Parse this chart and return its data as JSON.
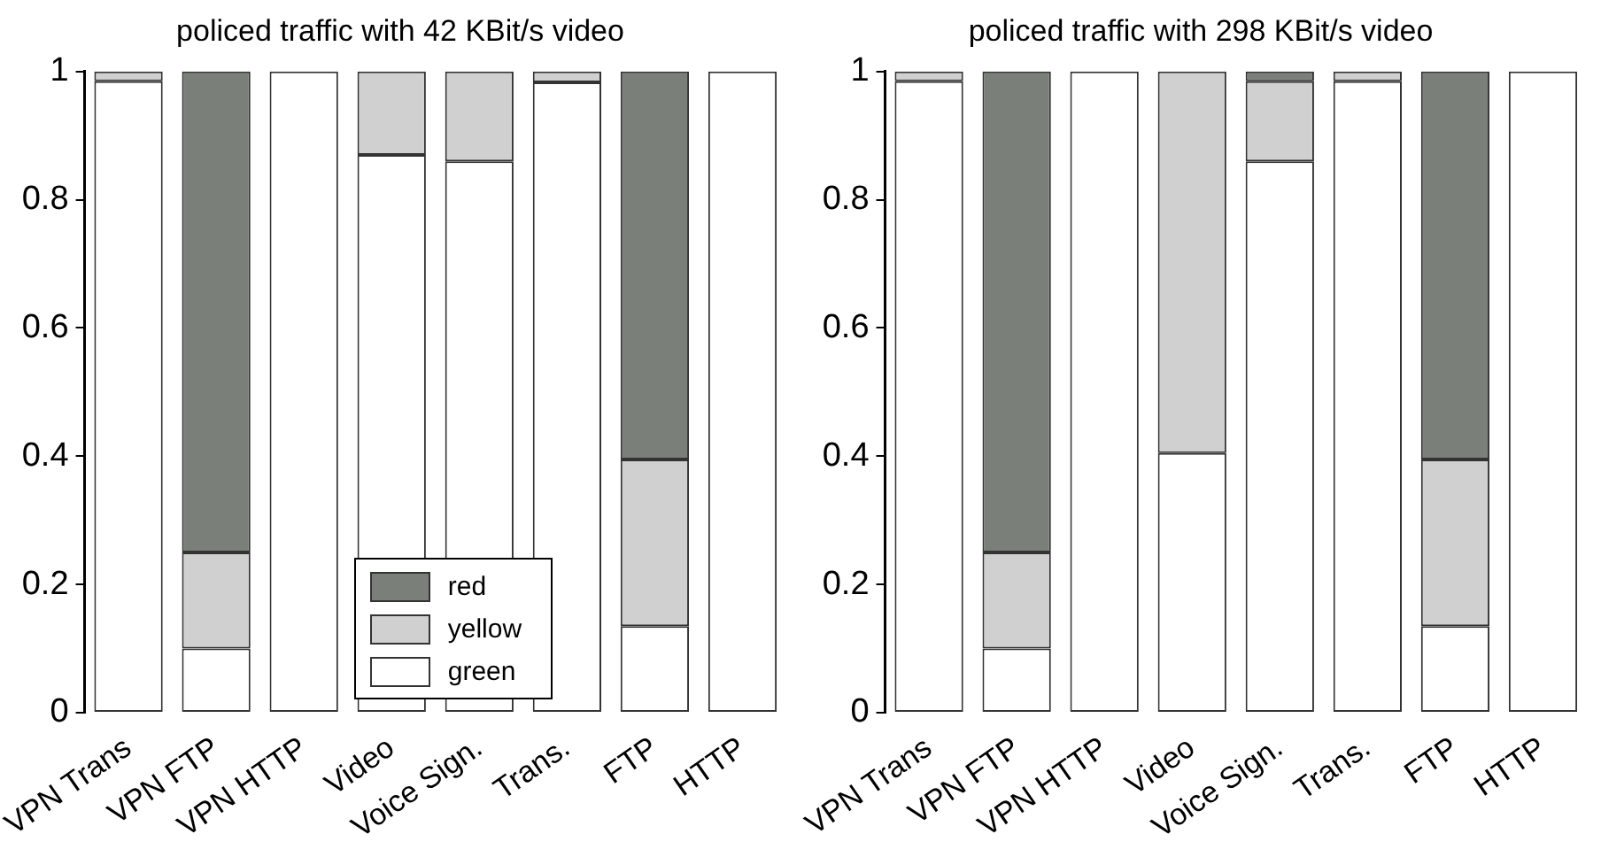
{
  "chart_data": [
    {
      "type": "bar",
      "title": "policed traffic with 42 KBit/s video",
      "stacked": true,
      "legend": "bottom",
      "grid": false,
      "categories": [
        "VPN Trans",
        "VPN FTP",
        "VPN HTTP",
        "Video",
        "Voice Sign.",
        "Trans.",
        "FTP",
        "HTTP"
      ],
      "ylim": [
        0,
        1
      ],
      "yticks": [
        0,
        0.2,
        0.4,
        0.6,
        0.8,
        1
      ],
      "series": [
        {
          "name": "green",
          "color": "#ffffff",
          "values": [
            0.985,
            0.1,
            1,
            0.87,
            0.86,
            0.983,
            0.135,
            1
          ]
        },
        {
          "name": "yellow",
          "color": "#d0d0d0",
          "values": [
            0.015,
            0.15,
            0,
            0.13,
            0.14,
            0.017,
            0.26,
            0
          ]
        },
        {
          "name": "red",
          "color": "#7a7f7a",
          "values": [
            0,
            0.75,
            0,
            0,
            0,
            0,
            0.605,
            0
          ]
        }
      ]
    },
    {
      "type": "bar",
      "title": "policed traffic with 298 KBit/s video",
      "stacked": true,
      "grid": false,
      "categories": [
        "VPN Trans",
        "VPN FTP",
        "VPN HTTP",
        "Video",
        "Voice Sign.",
        "Trans.",
        "FTP",
        "HTTP"
      ],
      "ylim": [
        0,
        1
      ],
      "yticks": [
        0,
        0.2,
        0.4,
        0.6,
        0.8,
        1
      ],
      "series": [
        {
          "color": "#ffffff",
          "values": [
            0.985,
            0.1,
            1,
            0.405,
            0.86,
            0.985,
            0.135,
            1
          ]
        },
        {
          "color": "#d0d0d0",
          "values": [
            0.015,
            0.15,
            0,
            0.595,
            0.125,
            0.015,
            0.26,
            0
          ]
        },
        {
          "color": "#7a7f7a",
          "values": [
            0,
            0.75,
            0,
            0,
            0.015,
            0,
            0.605,
            0
          ]
        }
      ]
    }
  ]
}
